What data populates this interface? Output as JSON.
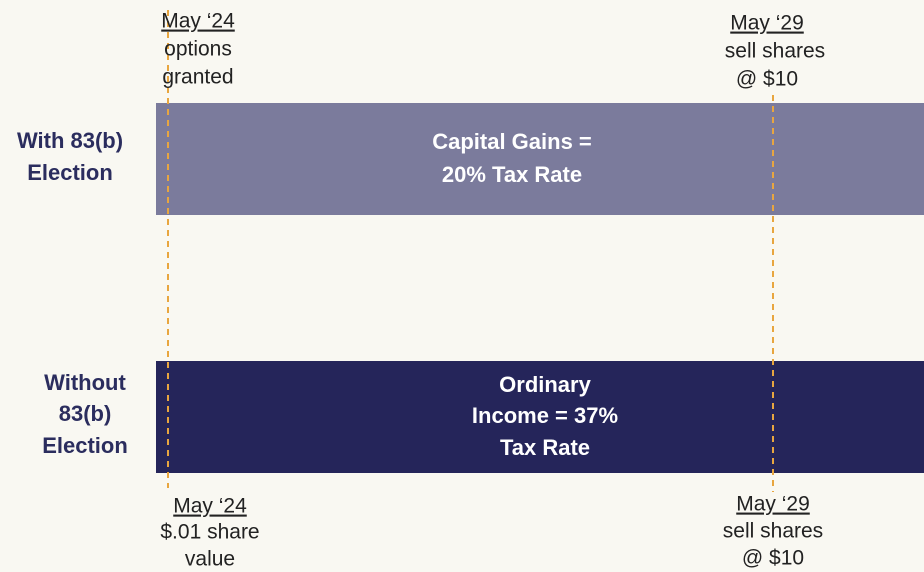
{
  "rows": [
    {
      "label": [
        "With 83(b)",
        "Election"
      ],
      "bar": [
        "Capital Gains =",
        "20% Tax Rate"
      ]
    },
    {
      "label": [
        "Without",
        "83(b)",
        "Election"
      ],
      "bar": [
        "Ordinary",
        "Income = 37%",
        "Tax Rate"
      ]
    }
  ],
  "top_markers": [
    {
      "date": "May ‘24",
      "lines": [
        "options",
        "granted"
      ]
    },
    {
      "date": "May ‘29",
      "lines": [
        "sell shares",
        "@ $10"
      ]
    }
  ],
  "bottom_markers": [
    {
      "date": "May ‘24",
      "lines": [
        "$.01 share",
        "value"
      ]
    },
    {
      "date": "May ‘29",
      "lines": [
        "sell shares",
        "@ $10"
      ]
    }
  ]
}
